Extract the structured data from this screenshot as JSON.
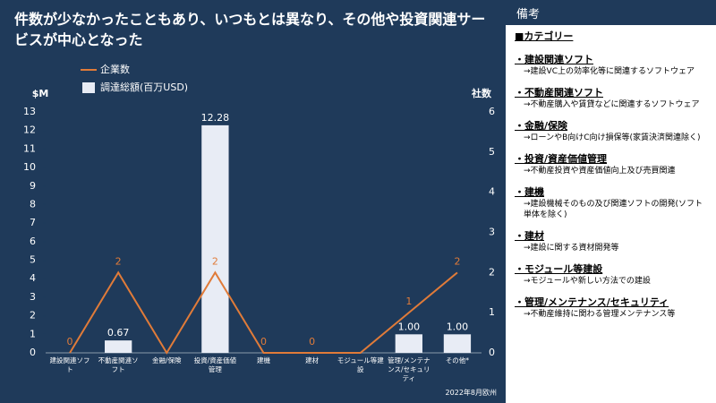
{
  "header": {
    "title": "件数が少なかったこともあり、いつもとは異なり、その他や投資関連サービスが中心となった"
  },
  "chart_data": {
    "type": "bar",
    "categories": [
      "建設関連ソフト",
      "不動産関連ソフト",
      "金融/保険",
      "投資/資産価値管理",
      "建機",
      "建材",
      "モジュール等建設",
      "管理/メンテナンス/セキュリティ",
      "その他*"
    ],
    "series": [
      {
        "name": "調達総額(百万USD)",
        "type": "bar",
        "color": "#e8ecf5",
        "values": [
          0,
          0.67,
          0,
          12.28,
          0,
          0,
          0,
          1.0,
          1.0
        ],
        "value_labels": [
          null,
          "0.67",
          null,
          "12.28",
          null,
          null,
          null,
          "1.00",
          "1.00"
        ]
      },
      {
        "name": "企業数",
        "type": "line",
        "axis": "y2",
        "color": "#e07b39",
        "values": [
          0,
          2,
          0,
          2,
          0,
          0,
          0,
          1,
          2
        ],
        "value_labels": [
          "0",
          "2",
          null,
          "2",
          "0",
          "0",
          null,
          "1",
          "2"
        ]
      }
    ],
    "ylabel": "$M",
    "y2label": "社数",
    "ylim": [
      0,
      13
    ],
    "yticks": [
      0,
      1,
      2,
      3,
      4,
      5,
      6,
      7,
      8,
      9,
      10,
      11,
      12,
      13
    ],
    "y2lim": [
      0,
      6
    ],
    "y2ticks": [
      0,
      1,
      2,
      3,
      4,
      5,
      6
    ],
    "note": "2022年8月欧州"
  },
  "side": {
    "title": "備考",
    "heading": "■カテゴリー",
    "items": [
      {
        "label": "・建設関連ソフト",
        "desc": "→建設VC上の効率化等に関連するソフトウェア"
      },
      {
        "label": "・不動産関連ソフト",
        "desc": "→不動産購入や賃貸などに関連するソフトウェア"
      },
      {
        "label": "・金融/保険",
        "desc": "→ローンやB向けC向け損保等(家賃決済関連除く)"
      },
      {
        "label": "・投資/資産価値管理",
        "desc": "→不動産投資や資産価値向上及び売買関連"
      },
      {
        "label": "・建機",
        "desc": "→建設機械そのもの及び関連ソフトの開発(ソフト単体を除く)"
      },
      {
        "label": "・建材",
        "desc": "→建設に関する資材開発等"
      },
      {
        "label": "・モジュール等建設",
        "desc": "→モジュールや新しい方法での建設"
      },
      {
        "label": "・管理/メンテナンス/セキュリティ",
        "desc": "→不動産維持に関わる管理メンテナンス等"
      }
    ]
  }
}
